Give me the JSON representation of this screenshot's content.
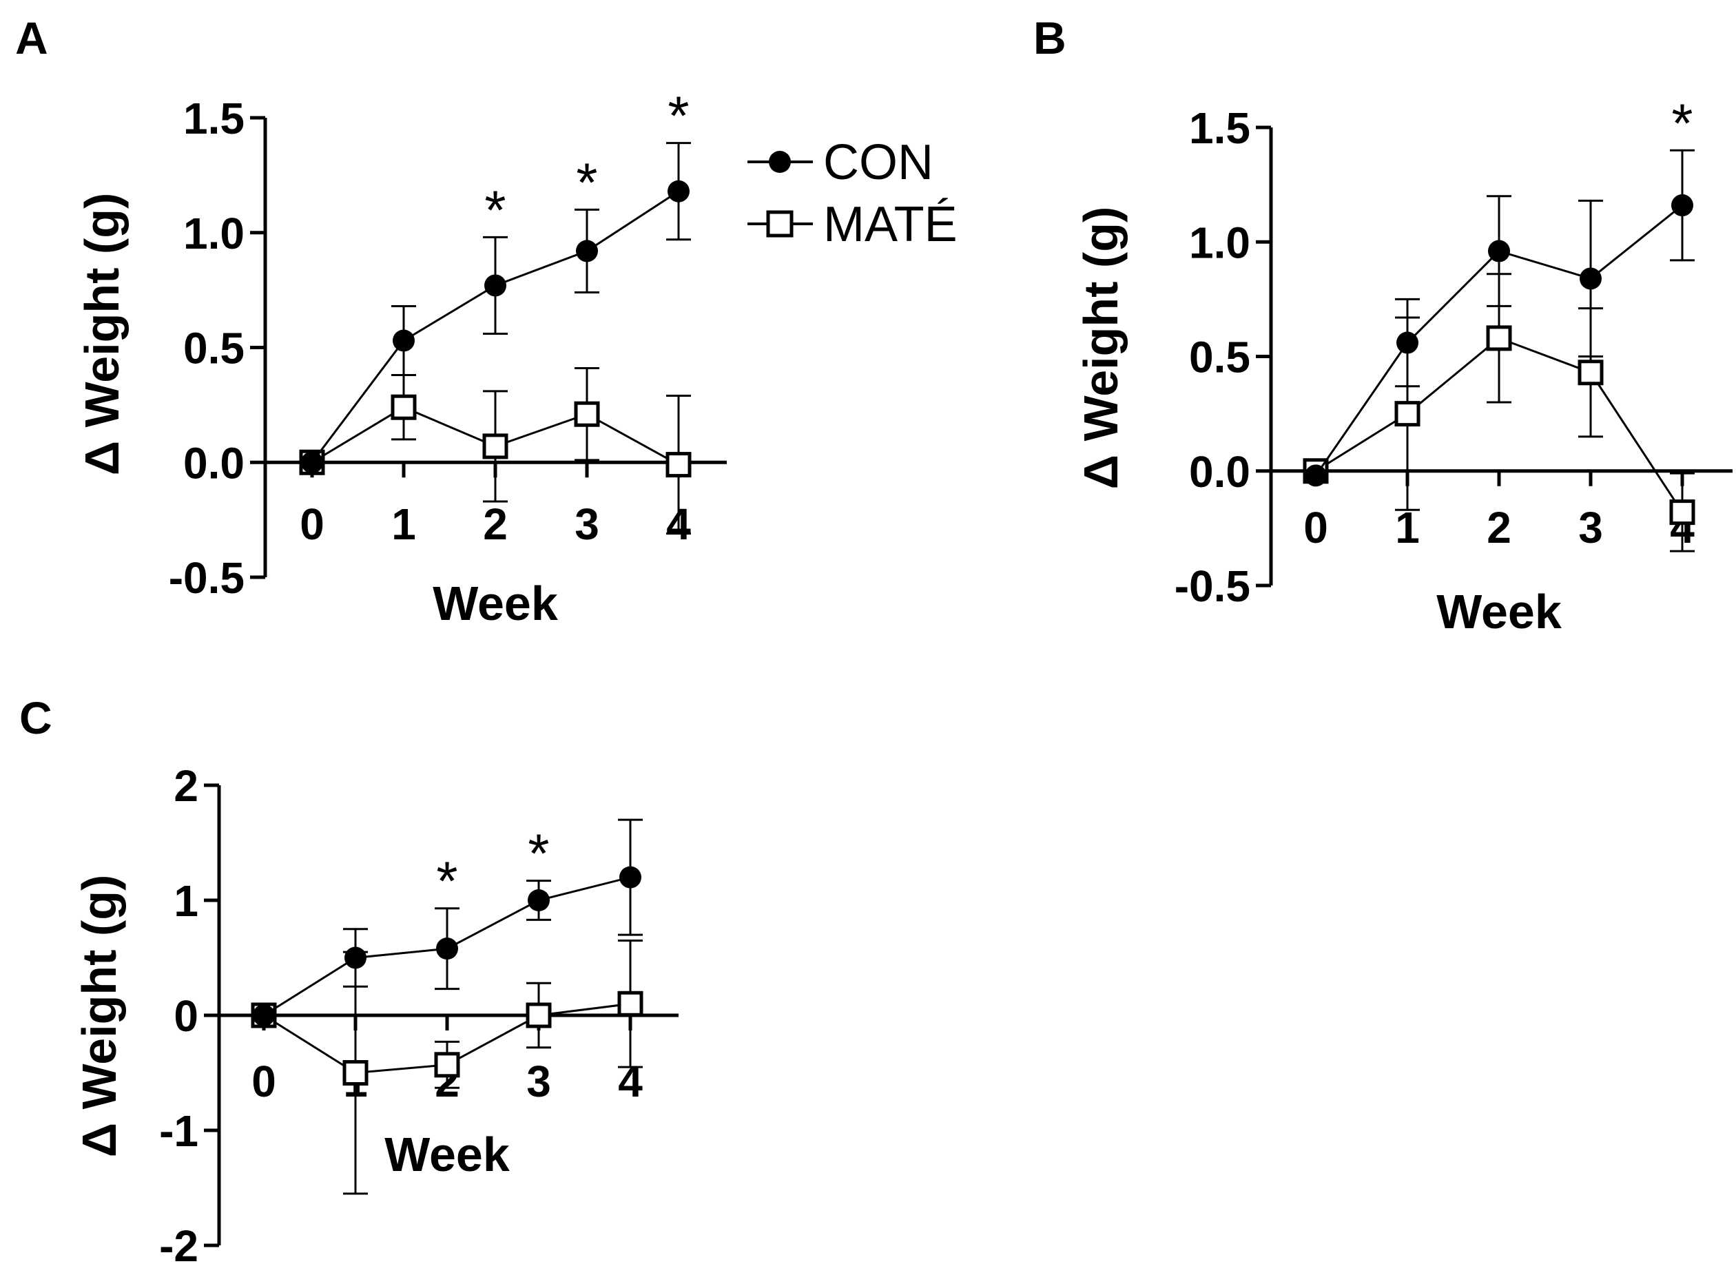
{
  "legend": {
    "entries": [
      {
        "name": "CON",
        "marker": "filled-circle-icon"
      },
      {
        "name": "MATÉ",
        "marker": "open-square-icon"
      }
    ]
  },
  "colors": {
    "ink": "#000000",
    "open_fill": "#ffffff"
  },
  "chart_data": [
    {
      "panel": "A",
      "type": "line",
      "xlabel": "Week",
      "ylabel": "Δ Weight (g)",
      "x": [
        0,
        1,
        2,
        3,
        4
      ],
      "x_tick_labels": [
        "0",
        "1",
        "2",
        "3",
        "4"
      ],
      "y_ticks": [
        1.5,
        1.0,
        0.5,
        0.0,
        -0.5
      ],
      "y_tick_labels": [
        "1.5",
        "1.0",
        "0.5",
        "0.0",
        "-0.5"
      ],
      "ylim": [
        -0.5,
        1.5
      ],
      "series": [
        {
          "name": "CON",
          "values": [
            0.0,
            0.53,
            0.77,
            0.92,
            1.18
          ],
          "error": [
            0.0,
            0.15,
            0.21,
            0.18,
            0.21
          ]
        },
        {
          "name": "MATÉ",
          "values": [
            0.0,
            0.24,
            0.07,
            0.21,
            -0.01
          ],
          "error": [
            0.0,
            0.14,
            0.24,
            0.2,
            0.3
          ]
        }
      ],
      "significance": [
        {
          "x": 2,
          "label": "*"
        },
        {
          "x": 3,
          "label": "*"
        },
        {
          "x": 4,
          "label": "*"
        }
      ]
    },
    {
      "panel": "B",
      "type": "line",
      "xlabel": "Week",
      "ylabel": "Δ Weight (g)",
      "x": [
        0,
        1,
        2,
        3,
        4
      ],
      "x_tick_labels": [
        "0",
        "1",
        "2",
        "3",
        "4"
      ],
      "y_ticks": [
        1.5,
        1.0,
        0.5,
        0.0,
        -0.5
      ],
      "y_tick_labels": [
        "1.5",
        "1.0",
        "0.5",
        "0.0",
        "-0.5"
      ],
      "ylim": [
        -0.5,
        1.5
      ],
      "series": [
        {
          "name": "CON",
          "values": [
            -0.02,
            0.56,
            0.96,
            0.84,
            1.16
          ],
          "error": [
            0.0,
            0.19,
            0.24,
            0.34,
            0.24
          ]
        },
        {
          "name": "MATÉ",
          "values": [
            0.0,
            0.25,
            0.58,
            0.43,
            -0.18
          ],
          "error": [
            0.0,
            0.42,
            0.28,
            0.28,
            0.17
          ]
        }
      ],
      "significance": [
        {
          "x": 4,
          "label": "*"
        }
      ]
    },
    {
      "panel": "C",
      "type": "line",
      "xlabel": "Week",
      "ylabel": "Δ Weight (g)",
      "x": [
        0,
        1,
        2,
        3,
        4
      ],
      "x_tick_labels": [
        "0",
        "1",
        "2",
        "3",
        "4"
      ],
      "y_ticks": [
        2,
        1,
        0,
        -1,
        -2
      ],
      "y_tick_labels": [
        "2",
        "1",
        "0",
        "-1",
        "-2"
      ],
      "ylim": [
        -2,
        2
      ],
      "series": [
        {
          "name": "CON",
          "values": [
            0.0,
            0.5,
            0.58,
            1.0,
            1.2
          ],
          "error": [
            0.0,
            0.25,
            0.35,
            0.17,
            0.5
          ]
        },
        {
          "name": "MATÉ",
          "values": [
            0.0,
            -0.5,
            -0.43,
            0.0,
            0.1
          ],
          "error": [
            0.0,
            1.05,
            0.2,
            0.28,
            0.55
          ]
        }
      ],
      "significance": [
        {
          "x": 2,
          "label": "*"
        },
        {
          "x": 3,
          "label": "*"
        }
      ]
    }
  ]
}
